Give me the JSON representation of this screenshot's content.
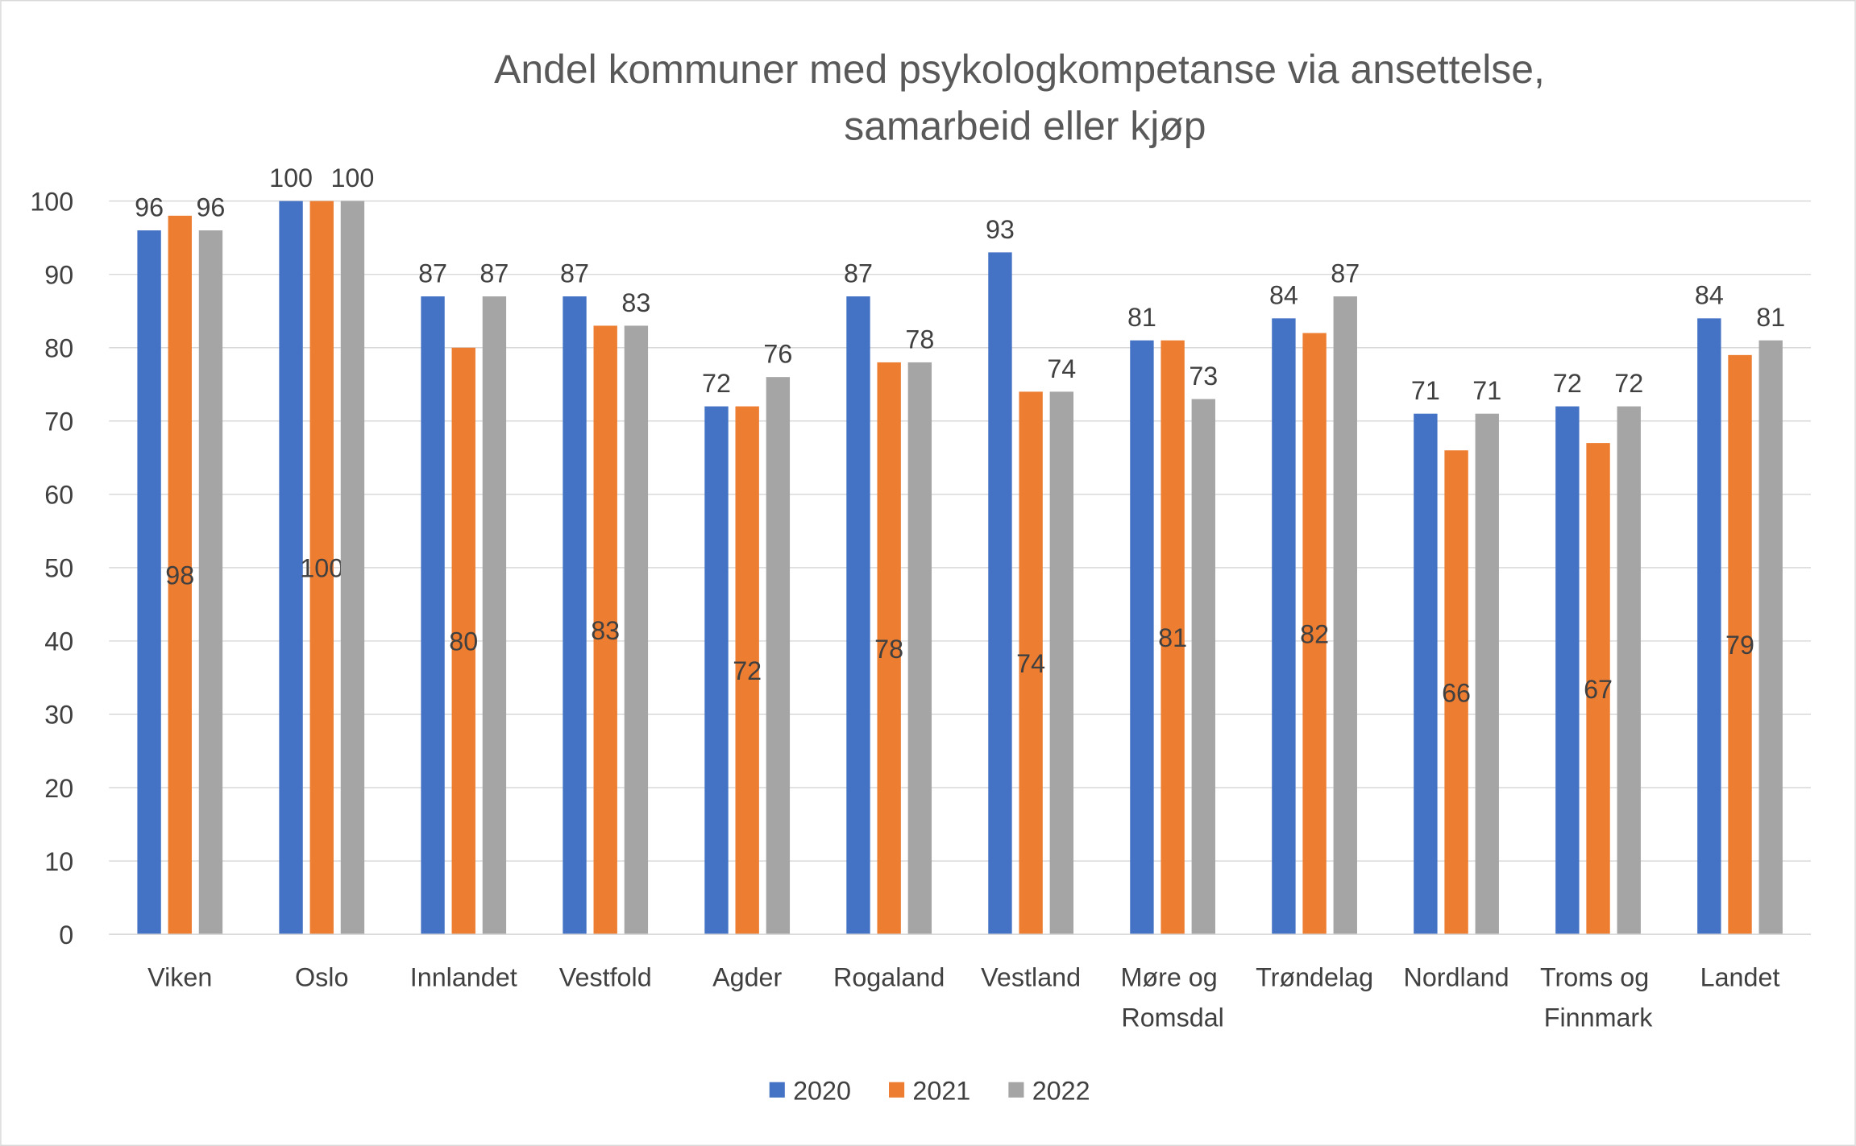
{
  "chart_data": {
    "type": "bar",
    "title": "Andel kommuner med psykologkompetanse via ansettelse, samarbeid eller kjøp",
    "categories": [
      "Viken",
      "Oslo",
      "Innlandet",
      "Vestfold",
      "Agder",
      "Rogaland",
      "Vestland",
      "Møre og Romsdal",
      "Trøndelag",
      "Nordland",
      "Troms og Finnmark",
      "Landet"
    ],
    "series": [
      {
        "name": "2020",
        "color": "#4472c4",
        "values": [
          96,
          100,
          87,
          87,
          72,
          87,
          93,
          81,
          84,
          71,
          72,
          84
        ]
      },
      {
        "name": "2021",
        "color": "#ed7d31",
        "values": [
          98,
          100,
          80,
          83,
          72,
          78,
          74,
          81,
          82,
          66,
          67,
          79
        ]
      },
      {
        "name": "2022",
        "color": "#a5a5a5",
        "values": [
          96,
          100,
          87,
          83,
          76,
          78,
          74,
          73,
          87,
          71,
          72,
          81
        ]
      }
    ],
    "ylim": [
      0,
      100
    ],
    "yticks": [
      0,
      10,
      20,
      30,
      40,
      50,
      60,
      70,
      80,
      90,
      100
    ],
    "grid": true,
    "legend": "bottom"
  }
}
